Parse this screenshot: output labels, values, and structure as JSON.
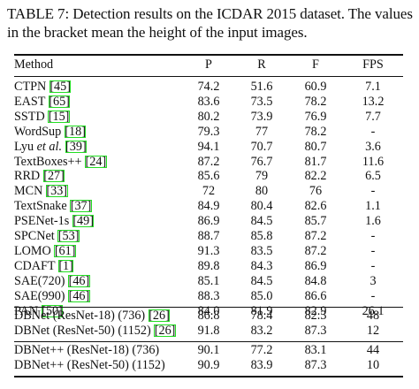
{
  "caption": "TABLE 7: Detection results on the ICDAR 2015 dataset. The values in the bracket mean the height of the input images.",
  "columns": [
    "Method",
    "P",
    "R",
    "F",
    "FPS"
  ],
  "groups": [
    {
      "rows": [
        {
          "name": "CTPN",
          "pre": "",
          "em": "",
          "post": "",
          "ref": "[45]",
          "after": "",
          "p": "74.2",
          "r": "51.6",
          "f": "60.9",
          "fps": "7.1",
          "bold": []
        },
        {
          "name": "EAST",
          "pre": "",
          "em": "",
          "post": "",
          "ref": "[65]",
          "after": "",
          "p": "83.6",
          "r": "73.5",
          "f": "78.2",
          "fps": "13.2",
          "bold": []
        },
        {
          "name": "SSTD",
          "pre": "",
          "em": "",
          "post": "",
          "ref": "[15]",
          "after": "",
          "p": "80.2",
          "r": "73.9",
          "f": "76.9",
          "fps": "7.7",
          "bold": []
        },
        {
          "name": "WordSup",
          "pre": "",
          "em": "",
          "post": "",
          "ref": "[18]",
          "after": "",
          "p": "79.3",
          "r": "77",
          "f": "78.2",
          "fps": "-",
          "bold": []
        },
        {
          "name": "",
          "pre": "Lyu ",
          "em": "et al.",
          "post": "",
          "ref": "[39]",
          "after": "",
          "p": "94.1",
          "r": "70.7",
          "f": "80.7",
          "fps": "3.6",
          "bold": [
            "p"
          ]
        },
        {
          "name": "TextBoxes++",
          "pre": "",
          "em": "",
          "post": "",
          "ref": "[24]",
          "after": "",
          "p": "87.2",
          "r": "76.7",
          "f": "81.7",
          "fps": "11.6",
          "bold": []
        },
        {
          "name": "RRD",
          "pre": "",
          "em": "",
          "post": "",
          "ref": "[27]",
          "after": "",
          "p": "85.6",
          "r": "79",
          "f": "82.2",
          "fps": "6.5",
          "bold": []
        },
        {
          "name": "MCN",
          "pre": "",
          "em": "",
          "post": "",
          "ref": "[33]",
          "after": "",
          "p": "72",
          "r": "80",
          "f": "76",
          "fps": "-",
          "bold": []
        },
        {
          "name": "TextSnake",
          "pre": "",
          "em": "",
          "post": "",
          "ref": "[37]",
          "after": "",
          "p": "84.9",
          "r": "80.4",
          "f": "82.6",
          "fps": "1.1",
          "bold": []
        },
        {
          "name": "PSENet-1s",
          "pre": "",
          "em": "",
          "post": "",
          "ref": "[49]",
          "after": "",
          "p": "86.9",
          "r": "84.5",
          "f": "85.7",
          "fps": "1.6",
          "bold": []
        },
        {
          "name": "SPCNet",
          "pre": "",
          "em": "",
          "post": "",
          "ref": "[53]",
          "after": "",
          "p": "88.7",
          "r": "85.8",
          "f": "87.2",
          "fps": "-",
          "bold": [
            "r"
          ]
        },
        {
          "name": "LOMO",
          "pre": "",
          "em": "",
          "post": "",
          "ref": "[61]",
          "after": "",
          "p": "91.3",
          "r": "83.5",
          "f": "87.2",
          "fps": "-",
          "bold": []
        },
        {
          "name": "CDAFT",
          "pre": "",
          "em": "",
          "post": "",
          "ref": "[1]",
          "after": "",
          "p": "89.8",
          "r": "84.3",
          "f": "86.9",
          "fps": "-",
          "bold": []
        },
        {
          "name": "SAE(720)",
          "pre": "",
          "em": "",
          "post": "",
          "ref": "[46]",
          "after": "",
          "p": "85.1",
          "r": "84.5",
          "f": "84.8",
          "fps": "3",
          "bold": []
        },
        {
          "name": "SAE(990)",
          "pre": "",
          "em": "",
          "post": "",
          "ref": "[46]",
          "after": "",
          "p": "88.3",
          "r": "85.0",
          "f": "86.6",
          "fps": "-",
          "bold": []
        },
        {
          "name": "PAN",
          "pre": "",
          "em": "",
          "post": "",
          "ref": "[50]",
          "after": "",
          "p": "84.0",
          "r": "81.9",
          "f": "82.9",
          "fps": "26.1",
          "bold": []
        }
      ]
    },
    {
      "rows": [
        {
          "name": "DBNet (ResNet-18) (736)",
          "pre": "",
          "em": "",
          "post": "",
          "ref": "[26]",
          "after": "",
          "p": "86.8",
          "r": "78.4",
          "f": "82.3",
          "fps": "48",
          "bold": [
            "fps"
          ]
        },
        {
          "name": "DBNet (ResNet-50) (1152)",
          "pre": "",
          "em": "",
          "post": "",
          "ref": "[26]",
          "after": "",
          "p": "91.8",
          "r": "83.2",
          "f": "87.3",
          "fps": "12",
          "bold": [
            "f"
          ]
        }
      ]
    },
    {
      "rows": [
        {
          "name": "DBNet++ (ResNet-18) (736)",
          "pre": "",
          "em": "",
          "post": "",
          "ref": "",
          "after": "",
          "p": "90.1",
          "r": "77.2",
          "f": "83.1",
          "fps": "44",
          "bold": []
        },
        {
          "name": "DBNet++ (ResNet-50) (1152)",
          "pre": "",
          "em": "",
          "post": "",
          "ref": "",
          "after": "",
          "p": "90.9",
          "r": "83.9",
          "f": "87.3",
          "fps": "10",
          "bold": [
            "f"
          ]
        }
      ]
    }
  ]
}
